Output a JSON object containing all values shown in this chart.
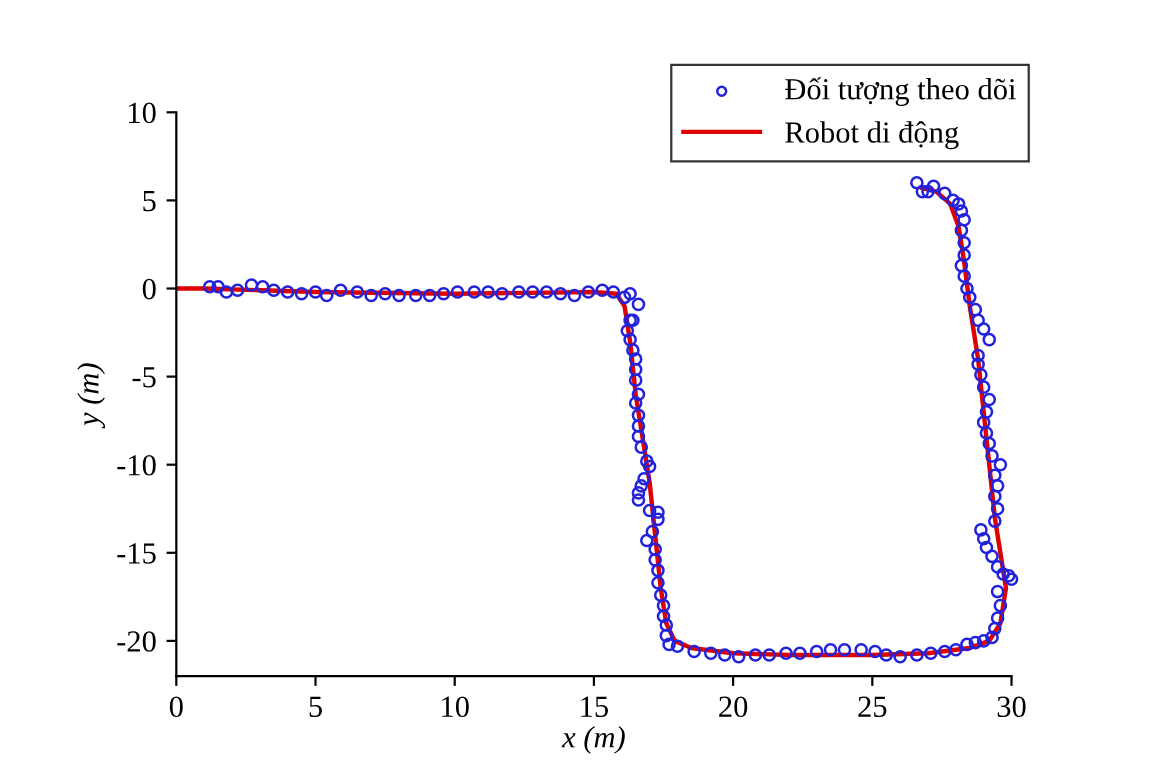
{
  "chart_data": {
    "type": "scatter",
    "xlabel": "x (m)",
    "ylabel": "y (m)",
    "xlim": [
      0,
      30
    ],
    "ylim": [
      -22,
      10
    ],
    "xticks": [
      0,
      5,
      10,
      15,
      20,
      25,
      30
    ],
    "yticks": [
      -20,
      -15,
      -10,
      -5,
      0,
      5,
      10
    ],
    "grid": false,
    "legend": "top right",
    "series": [
      {
        "name": "Đối tượng theo dõi",
        "marker": "circle",
        "color": "#2222dd",
        "x": [
          1.2,
          1.5,
          1.8,
          2.2,
          2.7,
          3.1,
          3.5,
          4.0,
          4.5,
          5.0,
          5.4,
          5.9,
          6.5,
          7.0,
          7.5,
          8.0,
          8.6,
          9.1,
          9.6,
          10.1,
          10.7,
          11.2,
          11.7,
          12.3,
          12.8,
          13.3,
          13.8,
          14.3,
          14.8,
          15.3,
          15.7,
          16.1,
          16.3,
          16.6,
          16.3,
          16.4,
          16.2,
          16.3,
          16.4,
          16.5,
          16.5,
          16.5,
          16.6,
          16.5,
          16.6,
          16.6,
          16.6,
          16.7,
          16.9,
          17.0,
          16.8,
          16.7,
          16.6,
          16.6,
          17.0,
          17.3,
          17.3,
          17.1,
          16.9,
          17.2,
          17.2,
          17.3,
          17.3,
          17.4,
          17.5,
          17.5,
          17.6,
          17.6,
          17.7,
          18.0,
          18.6,
          19.2,
          19.7,
          20.2,
          20.8,
          21.3,
          21.9,
          22.4,
          23.0,
          23.5,
          24.0,
          24.6,
          25.1,
          25.5,
          26.0,
          26.6,
          27.1,
          27.6,
          28.0,
          28.4,
          28.7,
          29.0,
          29.3,
          29.4,
          29.5,
          29.6,
          29.5,
          29.7,
          29.9,
          30.0,
          29.5,
          29.3,
          29.1,
          29.0,
          28.9,
          29.4,
          29.5,
          29.4,
          29.5,
          29.4,
          29.6,
          29.3,
          29.2,
          29.1,
          29.0,
          29.1,
          29.2,
          29.0,
          28.9,
          28.8,
          28.8,
          29.2,
          29.0,
          28.8,
          28.7,
          28.5,
          28.4,
          28.3,
          28.2,
          28.3,
          28.3,
          28.2,
          28.3,
          28.2,
          28.1,
          27.9,
          27.6,
          27.2,
          27.0,
          26.8,
          26.6
        ],
        "values": [
          0.1,
          0.1,
          -0.2,
          -0.1,
          0.2,
          0.1,
          -0.1,
          -0.2,
          -0.3,
          -0.2,
          -0.4,
          -0.1,
          -0.2,
          -0.4,
          -0.3,
          -0.4,
          -0.4,
          -0.4,
          -0.3,
          -0.2,
          -0.2,
          -0.2,
          -0.3,
          -0.2,
          -0.2,
          -0.2,
          -0.3,
          -0.4,
          -0.2,
          -0.1,
          -0.2,
          -0.5,
          -0.3,
          -0.9,
          -1.8,
          -1.8,
          -2.4,
          -2.9,
          -3.5,
          -4.0,
          -4.6,
          -5.2,
          -6.0,
          -6.5,
          -7.2,
          -7.8,
          -8.4,
          -9.0,
          -9.8,
          -10.1,
          -10.8,
          -11.2,
          -11.6,
          -12.0,
          -12.6,
          -12.7,
          -13.1,
          -13.8,
          -14.3,
          -14.8,
          -15.4,
          -16.0,
          -16.7,
          -17.4,
          -18.0,
          -18.6,
          -19.1,
          -19.7,
          -20.2,
          -20.3,
          -20.6,
          -20.7,
          -20.8,
          -20.9,
          -20.8,
          -20.8,
          -20.7,
          -20.7,
          -20.6,
          -20.5,
          -20.5,
          -20.5,
          -20.6,
          -20.8,
          -20.9,
          -20.8,
          -20.7,
          -20.6,
          -20.5,
          -20.2,
          -20.1,
          -20.0,
          -19.8,
          -19.3,
          -18.7,
          -18.0,
          -17.2,
          -16.2,
          -16.3,
          -16.5,
          -15.8,
          -15.2,
          -14.7,
          -14.2,
          -13.7,
          -13.2,
          -12.5,
          -11.8,
          -11.2,
          -10.6,
          -10.0,
          -9.5,
          -8.8,
          -8.2,
          -7.6,
          -7.0,
          -6.3,
          -5.6,
          -4.9,
          -4.3,
          -3.8,
          -2.9,
          -2.3,
          -1.8,
          -1.2,
          -0.5,
          0.0,
          0.7,
          1.3,
          1.9,
          2.6,
          3.3,
          3.9,
          4.4,
          4.8,
          5.0,
          5.4,
          5.8,
          5.5,
          5.5,
          6.0
        ]
      },
      {
        "name": "Robot di động",
        "type": "line",
        "color": "#dd0000",
        "marker": "none",
        "line_style": "solid",
        "x": [
          0,
          1,
          5,
          10,
          15,
          15.8,
          16.1,
          16.3,
          16.5,
          16.8,
          17.0,
          17.2,
          17.4,
          17.6,
          17.9,
          18.5,
          20,
          22,
          25,
          27,
          28.5,
          29.2,
          29.6,
          29.8,
          29.6,
          29.4,
          29.2,
          29.0,
          28.8,
          28.5,
          28.3,
          28.1,
          27.8,
          27.3,
          26.8
        ],
        "values": [
          0,
          0,
          -0.2,
          -0.3,
          -0.2,
          -0.3,
          -1,
          -3,
          -6,
          -9,
          -11,
          -14,
          -17,
          -19,
          -20,
          -20.4,
          -20.7,
          -20.8,
          -20.8,
          -20.7,
          -20.4,
          -20,
          -19,
          -17,
          -15,
          -13,
          -10,
          -7,
          -4,
          -1,
          1.5,
          3.5,
          4.8,
          5.5,
          5.7
        ]
      }
    ]
  }
}
